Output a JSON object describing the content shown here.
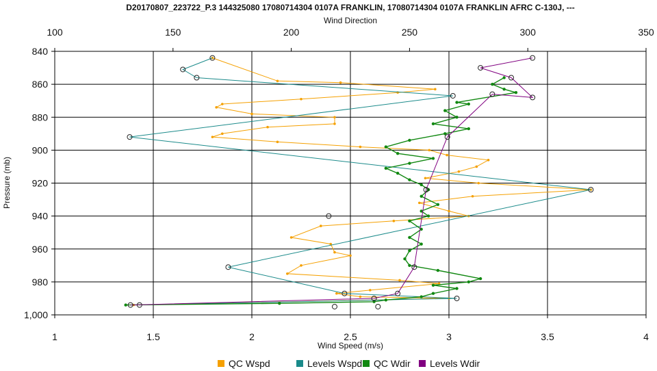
{
  "chart_data": {
    "type": "line",
    "title": "D20170807_223722_P.3 144325080 17080714304 0107A FRANKLIN, 17080714304 0107A FRANKLIN AFRC C-130J, ---",
    "xlabel": "Wind Speed (m/s)",
    "x2label": "Wind Direction",
    "ylabel": "Pressure (mb)",
    "xlim": [
      1,
      4
    ],
    "x2lim": [
      100,
      350
    ],
    "ylim": [
      1000,
      840
    ],
    "x_ticks": [
      "1",
      "1.5",
      "2",
      "2.5",
      "3",
      "3.5",
      "4"
    ],
    "x2_ticks": [
      "100",
      "150",
      "200",
      "250",
      "300",
      "350"
    ],
    "y_ticks": [
      "840",
      "860",
      "880",
      "900",
      "920",
      "940",
      "960",
      "980",
      "1,000"
    ],
    "y_tick_values": [
      840,
      860,
      880,
      900,
      920,
      940,
      960,
      980,
      1000
    ],
    "grid": true,
    "legend_position": "bottom",
    "series": [
      {
        "name": "QC Wspd",
        "color": "#f5a000",
        "axis": "bottom",
        "points": [
          [
            1.8,
            844
          ],
          [
            2.13,
            858
          ],
          [
            2.45,
            859
          ],
          [
            2.93,
            863
          ],
          [
            2.74,
            865
          ],
          [
            2.25,
            869
          ],
          [
            1.85,
            872
          ],
          [
            1.82,
            874
          ],
          [
            2.0,
            878
          ],
          [
            2.42,
            880
          ],
          [
            2.42,
            884
          ],
          [
            2.08,
            886
          ],
          [
            1.85,
            890
          ],
          [
            1.8,
            892
          ],
          [
            2.13,
            895
          ],
          [
            2.55,
            898
          ],
          [
            2.9,
            900
          ],
          [
            2.99,
            903
          ],
          [
            3.2,
            906
          ],
          [
            3.14,
            910
          ],
          [
            3.05,
            913
          ],
          [
            2.88,
            917
          ],
          [
            3.15,
            920
          ],
          [
            3.72,
            924
          ],
          [
            3.12,
            928
          ],
          [
            2.85,
            932
          ],
          [
            3.0,
            937
          ],
          [
            3.1,
            940
          ],
          [
            2.72,
            943
          ],
          [
            2.35,
            946
          ],
          [
            2.2,
            953
          ],
          [
            2.4,
            957
          ],
          [
            2.42,
            962
          ],
          [
            2.5,
            964
          ],
          [
            2.25,
            970
          ],
          [
            2.18,
            975
          ],
          [
            2.75,
            979
          ],
          [
            2.95,
            981
          ],
          [
            2.6,
            985
          ],
          [
            2.43,
            987
          ],
          [
            2.55,
            989
          ],
          [
            3.0,
            990
          ],
          [
            1.4,
            994
          ]
        ]
      },
      {
        "name": "Levels Wspd",
        "color": "#1a8a8a",
        "axis": "bottom",
        "points": [
          [
            1.8,
            844
          ],
          [
            1.65,
            851
          ],
          [
            1.72,
            856
          ],
          [
            3.02,
            867
          ],
          [
            1.38,
            892
          ],
          [
            3.72,
            924
          ],
          [
            1.88,
            971
          ],
          [
            2.47,
            987
          ],
          [
            3.04,
            990
          ],
          [
            1.43,
            994
          ]
        ]
      },
      {
        "name": "QC Wdir",
        "color": "#118811",
        "axis": "top",
        "points": [
          [
            290,
            856
          ],
          [
            285,
            860
          ],
          [
            290,
            863
          ],
          [
            295,
            865
          ],
          [
            270,
            871
          ],
          [
            275,
            872
          ],
          [
            265,
            876
          ],
          [
            270,
            880
          ],
          [
            260,
            884
          ],
          [
            275,
            887
          ],
          [
            265,
            890
          ],
          [
            250,
            894
          ],
          [
            240,
            898
          ],
          [
            245,
            902
          ],
          [
            260,
            905
          ],
          [
            250,
            908
          ],
          [
            240,
            911
          ],
          [
            245,
            914
          ],
          [
            250,
            918
          ],
          [
            255,
            921
          ],
          [
            258,
            924
          ],
          [
            255,
            928
          ],
          [
            262,
            933
          ],
          [
            255,
            937
          ],
          [
            258,
            940
          ],
          [
            250,
            943
          ],
          [
            255,
            948
          ],
          [
            250,
            953
          ],
          [
            255,
            957
          ],
          [
            250,
            961
          ],
          [
            248,
            966
          ],
          [
            250,
            970
          ],
          [
            262,
            973
          ],
          [
            280,
            978
          ],
          [
            275,
            980
          ],
          [
            260,
            982
          ],
          [
            270,
            984
          ],
          [
            260,
            987
          ],
          [
            255,
            989
          ],
          [
            240,
            991
          ],
          [
            235,
            992
          ],
          [
            195,
            993
          ],
          [
            130,
            994
          ]
        ]
      },
      {
        "name": "Levels Wdir",
        "color": "#800080",
        "axis": "top",
        "points": [
          [
            302,
            844
          ],
          [
            280,
            850
          ],
          [
            293,
            856
          ],
          [
            302,
            868
          ],
          [
            285,
            866
          ],
          [
            266,
            892
          ],
          [
            257,
            924
          ],
          [
            252,
            971
          ],
          [
            245,
            987
          ],
          [
            235,
            990
          ],
          [
            132,
            994
          ]
        ]
      }
    ],
    "scatter_markers": [
      [
        2.39,
        940
      ],
      [
        2.42,
        995
      ],
      [
        2.64,
        995
      ]
    ]
  }
}
